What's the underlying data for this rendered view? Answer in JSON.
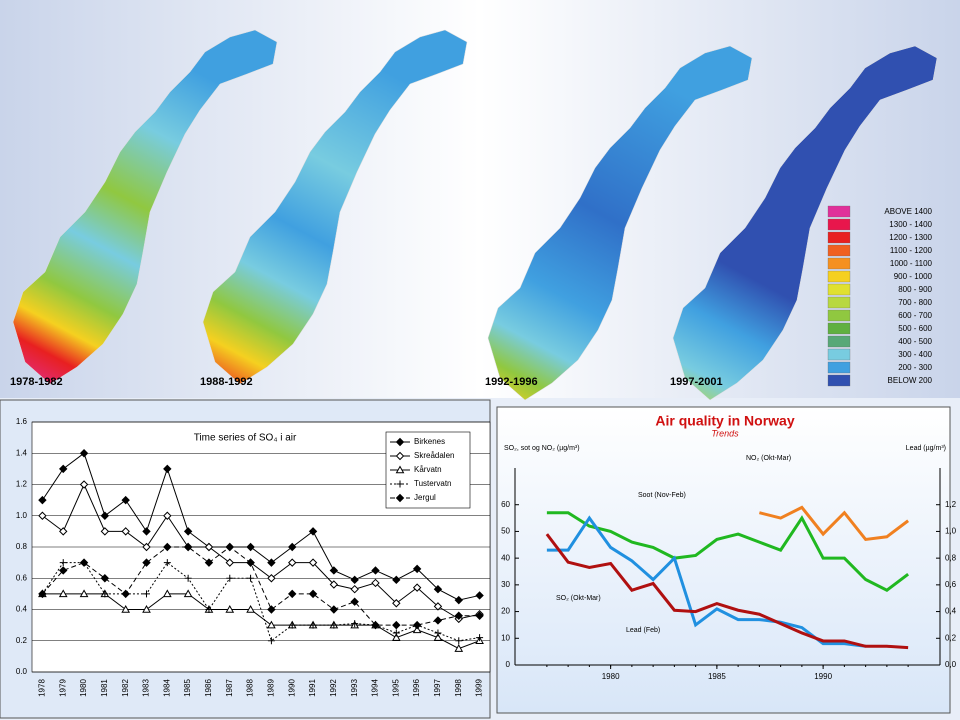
{
  "maps": {
    "periods": [
      "1978-1982",
      "1988-1992",
      "1992-1996",
      "1997-2001"
    ],
    "legend": [
      {
        "label": "ABOVE  1400",
        "color": "#e0309a"
      },
      {
        "label": "1300 - 1400",
        "color": "#e8164c"
      },
      {
        "label": "1200 - 1300",
        "color": "#e82020"
      },
      {
        "label": "1100 - 1200",
        "color": "#f06020"
      },
      {
        "label": "1000 - 1100",
        "color": "#f59020"
      },
      {
        "label": "900 - 1000",
        "color": "#f5d020"
      },
      {
        "label": "800 - 900",
        "color": "#e0e030"
      },
      {
        "label": "700 - 800",
        "color": "#b8d840"
      },
      {
        "label": "600 - 700",
        "color": "#90c840"
      },
      {
        "label": "500 - 600",
        "color": "#60b040"
      },
      {
        "label": "400 - 500",
        "color": "#58a878"
      },
      {
        "label": "300 - 400",
        "color": "#78cce0"
      },
      {
        "label": "200 - 300",
        "color": "#40a0e0"
      },
      {
        "label": "BELOW  200",
        "color": "#3050b0"
      }
    ]
  },
  "chart_data": [
    {
      "type": "line",
      "title": "Time series of SO₄ i air",
      "categories": [
        "1978",
        "1979",
        "1980",
        "1981",
        "1982",
        "1983",
        "1984",
        "1985",
        "1986",
        "1987",
        "1988",
        "1989",
        "1990",
        "1991",
        "1992",
        "1993",
        "1994",
        "1995",
        "1996",
        "1997",
        "1998",
        "1999"
      ],
      "ylim": [
        0,
        1.6
      ],
      "yticks": [
        {
          "value": 0,
          "label": "0.0"
        },
        0.2,
        0.4,
        0.6,
        0.8,
        {
          "value": 1,
          "label": "1.0"
        },
        1.2,
        1.4,
        1.6
      ],
      "grid": true,
      "legend": "top-right",
      "series": [
        {
          "name": "Birkenes",
          "color": "#000000",
          "marker": "diamond-filled",
          "dash": "solid",
          "values": [
            1.1,
            1.3,
            1.4,
            1.0,
            1.1,
            0.9,
            1.3,
            0.9,
            0.8,
            0.8,
            0.8,
            0.7,
            0.8,
            0.9,
            0.65,
            0.59,
            0.65,
            0.59,
            0.66,
            0.53,
            0.46,
            0.49
          ]
        },
        {
          "name": "Skreådalen",
          "color": "#000000",
          "marker": "diamond-open",
          "dash": "solid",
          "values": [
            1.0,
            0.9,
            1.2,
            0.9,
            0.9,
            0.8,
            1.0,
            0.8,
            0.8,
            0.7,
            0.7,
            0.6,
            0.7,
            0.7,
            0.56,
            0.53,
            0.57,
            0.44,
            0.54,
            0.42,
            0.34,
            0.37
          ]
        },
        {
          "name": "Kårvatn",
          "color": "#000000",
          "marker": "triangle-open",
          "dash": "solid",
          "values": [
            0.5,
            0.5,
            0.5,
            0.5,
            0.4,
            0.4,
            0.5,
            0.5,
            0.4,
            0.4,
            0.4,
            0.3,
            0.3,
            0.3,
            0.3,
            0.3,
            0.3,
            0.22,
            0.27,
            0.22,
            0.15,
            0.2
          ]
        },
        {
          "name": "Tustervatn",
          "color": "#000000",
          "marker": "plus",
          "dash": "dotted",
          "values": [
            0.5,
            0.7,
            0.7,
            0.5,
            0.5,
            0.5,
            0.7,
            0.6,
            0.4,
            0.6,
            0.6,
            0.2,
            0.3,
            0.3,
            0.3,
            0.31,
            0.3,
            0.25,
            0.3,
            0.25,
            0.2,
            0.22
          ]
        },
        {
          "name": "Jergul",
          "color": "#000000",
          "marker": "diamond-filled",
          "dash": "dashed",
          "values": [
            0.5,
            0.65,
            0.7,
            0.6,
            0.5,
            0.7,
            0.8,
            0.8,
            0.7,
            0.8,
            0.7,
            0.4,
            0.5,
            0.5,
            0.4,
            0.45,
            0.3,
            0.3,
            0.3,
            0.33,
            0.36,
            0.36
          ]
        }
      ]
    },
    {
      "type": "line",
      "title": "Air quality in Norway",
      "subtitle": "Trends",
      "y_label": "SO₂, sot og NO₂ (µg/m³)",
      "y2_label": "Lead (µg/m³)",
      "x": [
        1977,
        1978,
        1979,
        1980,
        1981,
        1982,
        1983,
        1984,
        1985,
        1986,
        1987,
        1988,
        1989,
        1990,
        1991,
        1992,
        1993,
        1994
      ],
      "xlim": [
        1975.5,
        1995.5
      ],
      "xticks": [
        1980,
        1985,
        1990
      ],
      "ylim": [
        0,
        70
      ],
      "yticks": [
        0,
        10,
        20,
        30,
        40,
        50,
        60
      ],
      "y2lim": [
        0,
        1.4
      ],
      "y2ticks": [
        {
          "value": 0,
          "label": "0,0"
        },
        {
          "value": 0.2,
          "label": "0,2"
        },
        {
          "value": 0.4,
          "label": "0,4"
        },
        {
          "value": 0.6,
          "label": "0,6"
        },
        {
          "value": 0.8,
          "label": "0,8"
        },
        {
          "value": 1.0,
          "label": "1,0"
        },
        {
          "value": 1.2,
          "label": "1,2"
        }
      ],
      "grid": false,
      "series": [
        {
          "name": "Soot",
          "color": "#20b820",
          "values": [
            57,
            57,
            52,
            50,
            46,
            44,
            40,
            41,
            47,
            49,
            46,
            43,
            55,
            40,
            40,
            32,
            28,
            34
          ]
        },
        {
          "name": "SO₂",
          "color": "#2090e0",
          "values": [
            43,
            43,
            55,
            44,
            39,
            32,
            40,
            15,
            21,
            17,
            17,
            16,
            14,
            8,
            8,
            7,
            null,
            null
          ]
        },
        {
          "name": "NO₂",
          "color": "#f08020",
          "values": [
            null,
            null,
            null,
            null,
            null,
            null,
            null,
            null,
            null,
            null,
            57,
            55,
            59,
            49,
            57,
            47,
            48,
            54
          ]
        },
        {
          "name": "Lead",
          "color": "#b01010",
          "axis": "y2",
          "values": [
            0.98,
            0.77,
            0.73,
            0.76,
            0.56,
            0.61,
            0.41,
            0.4,
            0.46,
            0.41,
            0.38,
            0.31,
            0.24,
            0.18,
            0.18,
            0.14,
            0.14,
            0.13
          ]
        }
      ],
      "annotations": [
        "NO₂ (Okt-Mar)",
        "Soot (Nov-Feb)",
        "SO₂ (Okt-Mar)",
        "Lead (Feb)"
      ]
    }
  ]
}
